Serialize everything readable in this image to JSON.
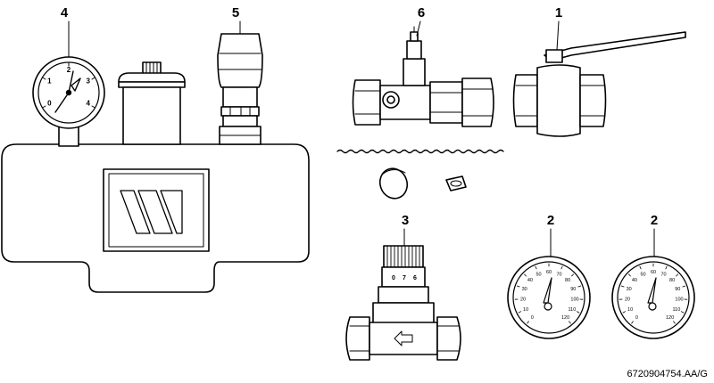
{
  "callouts": {
    "c1": "1",
    "c2a": "2",
    "c2b": "2",
    "c3": "3",
    "c4": "4",
    "c5": "5",
    "c6": "6"
  },
  "pressure_gauge_ticks": [
    "0",
    "1",
    "2",
    "3",
    "4"
  ],
  "thermometer_ticks": [
    "0",
    "10",
    "20",
    "30",
    "40",
    "50",
    "60",
    "70",
    "80",
    "90",
    "100",
    "110",
    "120"
  ],
  "valve_scale": [
    "0",
    "7",
    "6"
  ],
  "doc_ref": "6720904754.AA/G"
}
